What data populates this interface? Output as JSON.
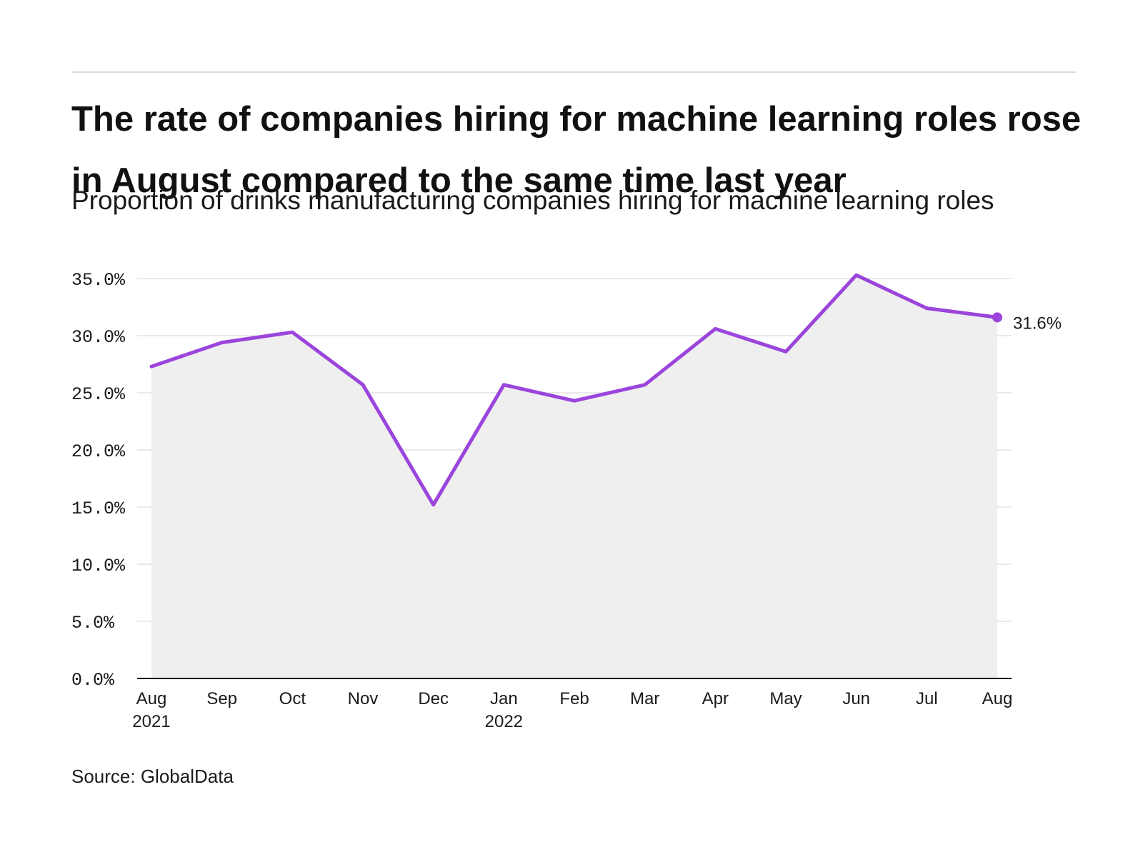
{
  "header": {
    "title": "The rate of companies hiring for machine learning roles rose in August compared to the same time last year",
    "subtitle": "Proportion of drinks manufacturing companies hiring for machine learning roles"
  },
  "footer": {
    "source": "Source: GlobalData"
  },
  "colors": {
    "line": "#9b45dc",
    "area": "#efefef",
    "grid": "#e3e3e3",
    "axis": "#1a1a1a"
  },
  "chart_data": {
    "type": "line",
    "title": "The rate of companies hiring for machine learning roles rose in August compared to the same time last year",
    "subtitle": "Proportion of drinks manufacturing companies hiring for machine learning roles",
    "xlabel": "",
    "ylabel": "",
    "categories": [
      "Aug 2021",
      "Sep 2021",
      "Oct 2021",
      "Nov 2021",
      "Dec 2021",
      "Jan 2022",
      "Feb 2022",
      "Mar 2022",
      "Apr 2022",
      "May 2022",
      "Jun 2022",
      "Jul 2022",
      "Aug 2022"
    ],
    "x_tick_labels": [
      [
        "Aug",
        "2021"
      ],
      [
        "Sep"
      ],
      [
        "Oct"
      ],
      [
        "Nov"
      ],
      [
        "Dec"
      ],
      [
        "Jan",
        "2022"
      ],
      [
        "Feb"
      ],
      [
        "Mar"
      ],
      [
        "Apr"
      ],
      [
        "May"
      ],
      [
        "Jun"
      ],
      [
        "Jul"
      ],
      [
        "Aug"
      ]
    ],
    "series": [
      {
        "values": [
          27.3,
          29.4,
          30.3,
          25.7,
          15.2,
          25.7,
          24.3,
          25.7,
          30.6,
          28.6,
          35.3,
          32.4,
          31.6
        ]
      }
    ],
    "ylim": [
      0,
      35
    ],
    "y_ticks": [
      0,
      5,
      10,
      15,
      20,
      25,
      30,
      35
    ],
    "y_tick_labels": [
      "0.0%",
      "5.0%",
      "10.0%",
      "15.0%",
      "20.0%",
      "25.0%",
      "30.0%",
      "35.0%"
    ],
    "end_label": "31.6%",
    "grid": true,
    "area_fill": true
  }
}
